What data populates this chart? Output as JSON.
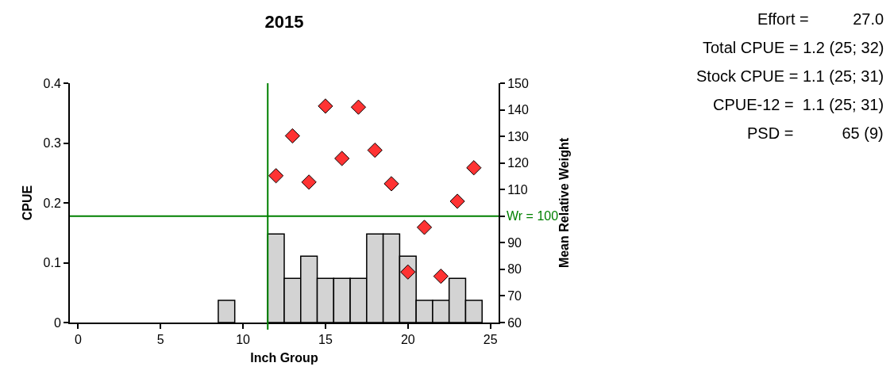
{
  "chart_data": {
    "type": "bar",
    "title": "2015",
    "xlabel": "Inch Group",
    "ylabel": "CPUE",
    "y2label": "Mean Relative Weight",
    "x": [
      9,
      12,
      13,
      14,
      15,
      16,
      17,
      18,
      19,
      20,
      21,
      22,
      23,
      24
    ],
    "series": [
      {
        "color": "#d3d3d3",
        "values": [
          0.037,
          0.148,
          0.074,
          0.111,
          0.074,
          0.074,
          0.074,
          0.148,
          0.148,
          0.111,
          0.037,
          0.037,
          0.074,
          0.037
        ]
      },
      {
        "type": "scatter",
        "axis": "y2",
        "color": "#ff3333",
        "x": [
          12,
          13,
          14,
          15,
          16,
          17,
          18,
          19,
          20,
          21,
          22,
          23,
          24
        ],
        "values": [
          115.2,
          130.2,
          112.8,
          141.4,
          121.7,
          141,
          124.8,
          112.2,
          79,
          95.8,
          77.4,
          105.6,
          118.2
        ]
      }
    ],
    "marker": "diamond",
    "xlim": [
      -0.5,
      25.5
    ],
    "xticks": [
      0,
      5,
      10,
      15,
      20,
      25
    ],
    "ylim": [
      0,
      0.4
    ],
    "yticks": [
      0,
      0.1,
      0.2,
      0.3,
      0.4
    ],
    "y2lim": [
      60,
      150
    ],
    "y2ticks": [
      60,
      70,
      80,
      90,
      {
        "value": 100,
        "label": null
      },
      110,
      120,
      130,
      140,
      150
    ],
    "ref_lines": [
      {
        "axis": "x",
        "value": 11.5,
        "color": "#008000"
      },
      {
        "axis": "y2",
        "value": 100,
        "label": "Wr = 100",
        "color": "#008000"
      }
    ],
    "annotations": [
      "Effort =          27.0",
      "Total CPUE = 1.2 (25; 32)",
      "Stock CPUE = 1.1 (25; 31)",
      "CPUE-12 =  1.1 (25; 31)",
      "PSD =           65 (9)"
    ]
  }
}
